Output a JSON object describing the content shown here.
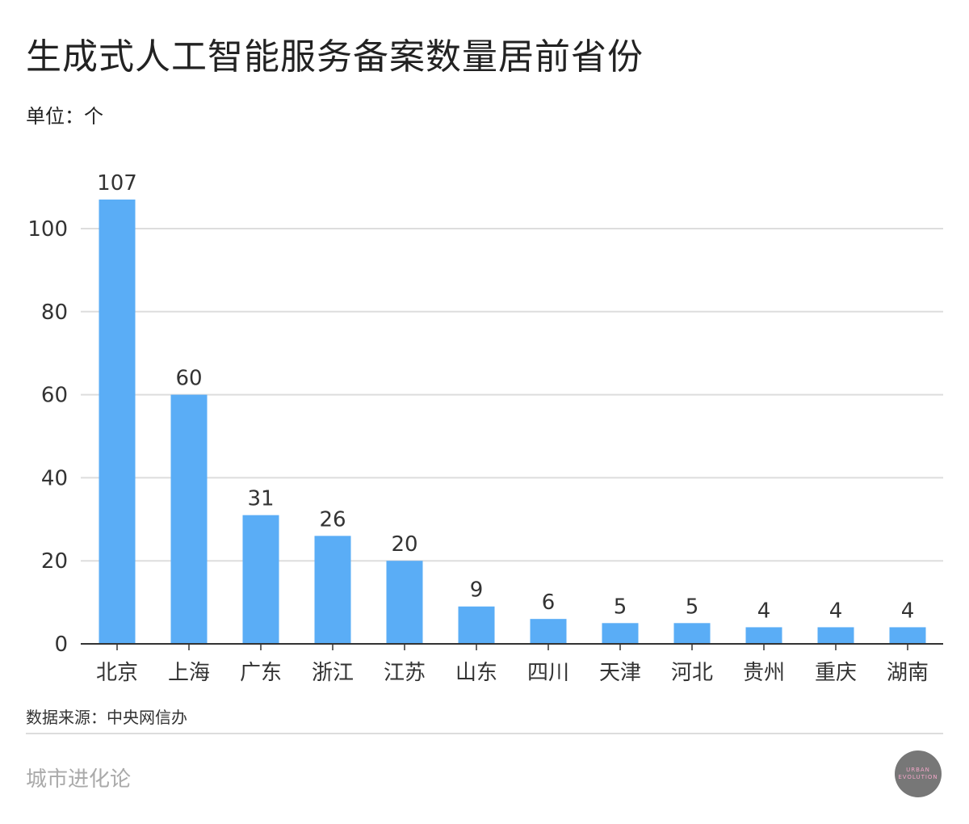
{
  "title": "生成式人工智能服务备案数量居前省份",
  "unit": "单位：个",
  "source": "数据来源：中央网信办",
  "brand": "城市进化论",
  "logo_text": [
    "URBAN",
    "EVOLUTION"
  ],
  "colors": {
    "bar": "#5AADF6",
    "grid": "#dddddd",
    "axis": "#333333",
    "text": "#333333"
  },
  "chart_data": {
    "type": "bar",
    "categories": [
      "北京",
      "上海",
      "广东",
      "浙江",
      "江苏",
      "山东",
      "四川",
      "天津",
      "河北",
      "贵州",
      "重庆",
      "湖南"
    ],
    "values": [
      107,
      60,
      31,
      26,
      20,
      9,
      6,
      5,
      5,
      4,
      4,
      4
    ],
    "yticks": [
      0,
      20,
      40,
      60,
      80,
      100
    ],
    "ylim": [
      0,
      110
    ],
    "grid": true,
    "data_labels": true
  }
}
